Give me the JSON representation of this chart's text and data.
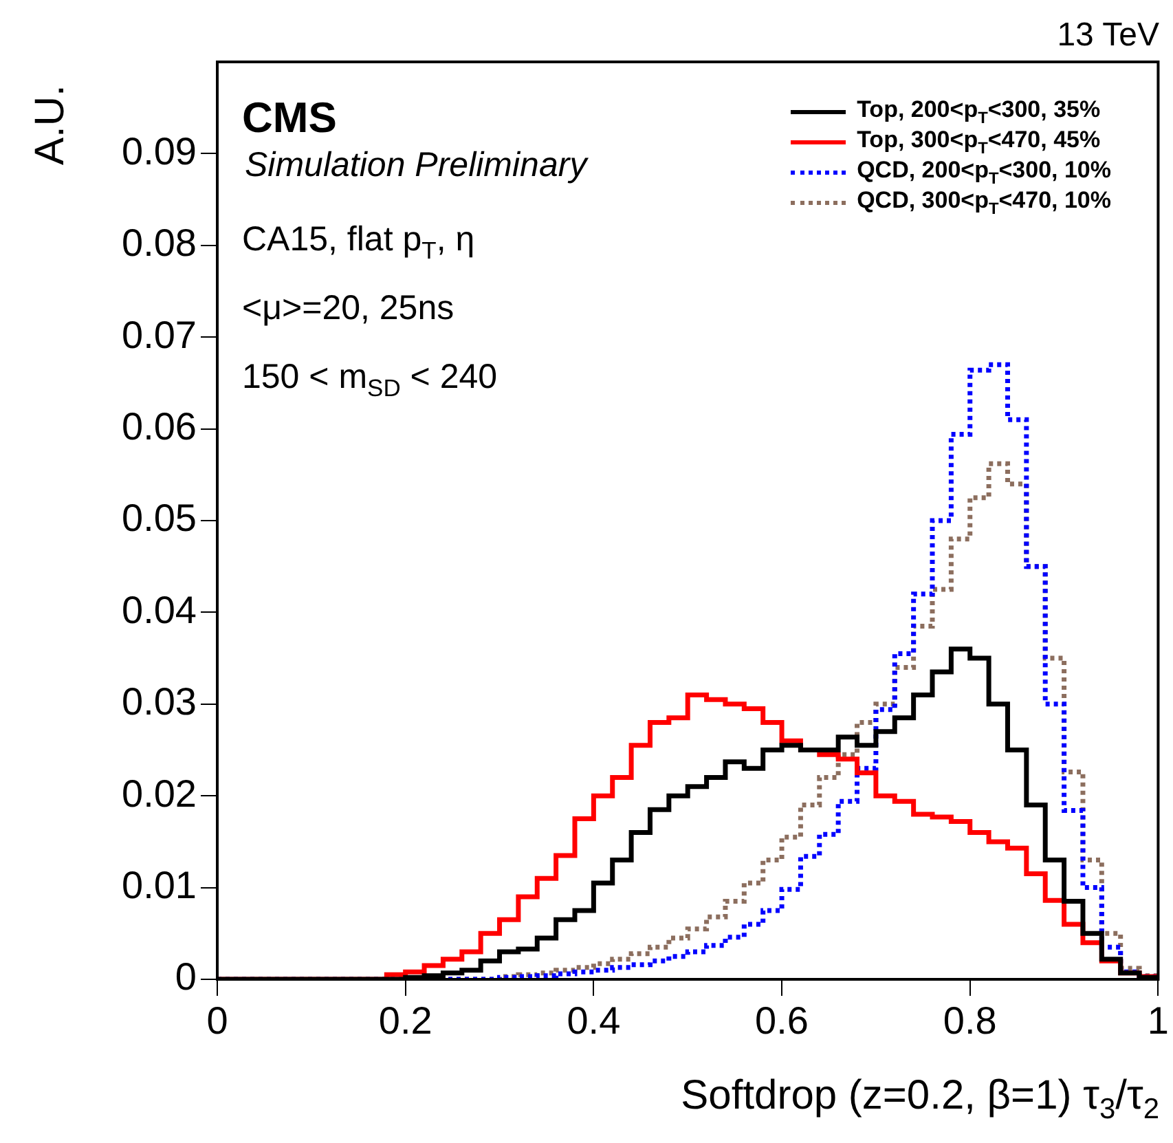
{
  "chart_data": {
    "type": "histogram",
    "xlabel": "Softdrop (z=0.2, β=1) τ$_{3}$/τ$_{2}$",
    "ylabel": "A.U.",
    "annotations": [
      "CMS",
      "Simulation Preliminary",
      "CA15, flat p$_{T}$, η",
      "<μ>=20, 25ns",
      "150 < m$_{SD}$ < 240",
      "13 TeV"
    ],
    "bins": [
      0,
      0.02,
      0.04,
      0.06,
      0.08,
      0.1,
      0.12,
      0.14,
      0.16,
      0.18,
      0.2,
      0.22,
      0.24,
      0.26,
      0.28,
      0.3,
      0.32,
      0.34,
      0.36,
      0.38,
      0.4,
      0.42,
      0.44,
      0.46,
      0.48,
      0.5,
      0.52,
      0.54,
      0.56,
      0.58,
      0.6,
      0.62,
      0.64,
      0.66,
      0.68,
      0.7,
      0.72,
      0.74,
      0.76,
      0.78,
      0.8,
      0.82,
      0.84,
      0.86,
      0.88,
      0.9,
      0.92,
      0.94,
      0.96,
      0.98,
      1
    ],
    "series": [
      {
        "name": "Top, 200<p$_{T}$<300, 35%",
        "color": "#000000",
        "line_style": "solid",
        "values": [
          0,
          0,
          0,
          0,
          0,
          0,
          0,
          0,
          0,
          0,
          0.0002,
          0.0004,
          0.0007,
          0.001,
          0.002,
          0.003,
          0.0033,
          0.0045,
          0.0065,
          0.0075,
          0.0105,
          0.013,
          0.016,
          0.0185,
          0.02,
          0.021,
          0.022,
          0.0237,
          0.023,
          0.025,
          0.0255,
          0.025,
          0.025,
          0.0264,
          0.0255,
          0.027,
          0.0285,
          0.031,
          0.0335,
          0.036,
          0.035,
          0.03,
          0.025,
          0.019,
          0.013,
          0.0085,
          0.005,
          0.0022,
          0.0007,
          0.0002
        ]
      },
      {
        "name": "Top, 300<p$_{T}$<470, 45%",
        "color": "#ff0000",
        "line_style": "solid",
        "values": [
          0,
          0,
          0,
          0,
          0,
          0,
          0,
          0,
          0,
          0.0005,
          0.0008,
          0.0015,
          0.0022,
          0.003,
          0.005,
          0.0065,
          0.009,
          0.011,
          0.0135,
          0.0175,
          0.02,
          0.022,
          0.0255,
          0.028,
          0.0285,
          0.031,
          0.0305,
          0.03,
          0.0295,
          0.028,
          0.026,
          0.025,
          0.0245,
          0.024,
          0.0225,
          0.02,
          0.0194,
          0.018,
          0.0177,
          0.0172,
          0.016,
          0.015,
          0.0143,
          0.0115,
          0.0086,
          0.006,
          0.004,
          0.002,
          0.0007,
          0.0003
        ]
      },
      {
        "name": "QCD, 200<p$_{T}$<300, 10%",
        "color": "#0000ff",
        "line_style": "dotted",
        "values": [
          0,
          0,
          0,
          0,
          0,
          0,
          0,
          0,
          0,
          0,
          0,
          0,
          0,
          0,
          0,
          0.0002,
          0.0003,
          0.0004,
          0.0006,
          0.0008,
          0.001,
          0.0013,
          0.0016,
          0.002,
          0.0025,
          0.003,
          0.0037,
          0.0046,
          0.006,
          0.0075,
          0.0098,
          0.0134,
          0.0158,
          0.0194,
          0.023,
          0.0294,
          0.0355,
          0.042,
          0.05,
          0.0594,
          0.0664,
          0.067,
          0.061,
          0.045,
          0.03,
          0.0184,
          0.01,
          0.0035,
          0.0008,
          0.0003
        ]
      },
      {
        "name": "QCD, 300<p$_{T}$<470, 10%",
        "color": "#8c6e5e",
        "line_style": "dotted",
        "values": [
          0,
          0,
          0,
          0,
          0,
          0,
          0,
          0,
          0,
          0,
          0,
          0,
          0,
          0,
          0,
          0.0003,
          0.0005,
          0.0007,
          0.001,
          0.0013,
          0.0017,
          0.0022,
          0.0028,
          0.0035,
          0.0045,
          0.0055,
          0.0068,
          0.0085,
          0.0105,
          0.013,
          0.0155,
          0.019,
          0.022,
          0.0245,
          0.028,
          0.03,
          0.034,
          0.0385,
          0.0425,
          0.048,
          0.0525,
          0.0562,
          0.054,
          0.045,
          0.035,
          0.0226,
          0.013,
          0.005,
          0.0012,
          0.0004
        ]
      }
    ],
    "xlim": [
      0,
      1
    ],
    "xticks": [
      0,
      0.2,
      0.4,
      0.6,
      0.8,
      1
    ],
    "ylim": [
      0,
      0.1
    ],
    "yticks": [
      0,
      0.01,
      0.02,
      0.03,
      0.04,
      0.05,
      0.06,
      0.07,
      0.08,
      0.09
    ],
    "legend": "top right"
  }
}
